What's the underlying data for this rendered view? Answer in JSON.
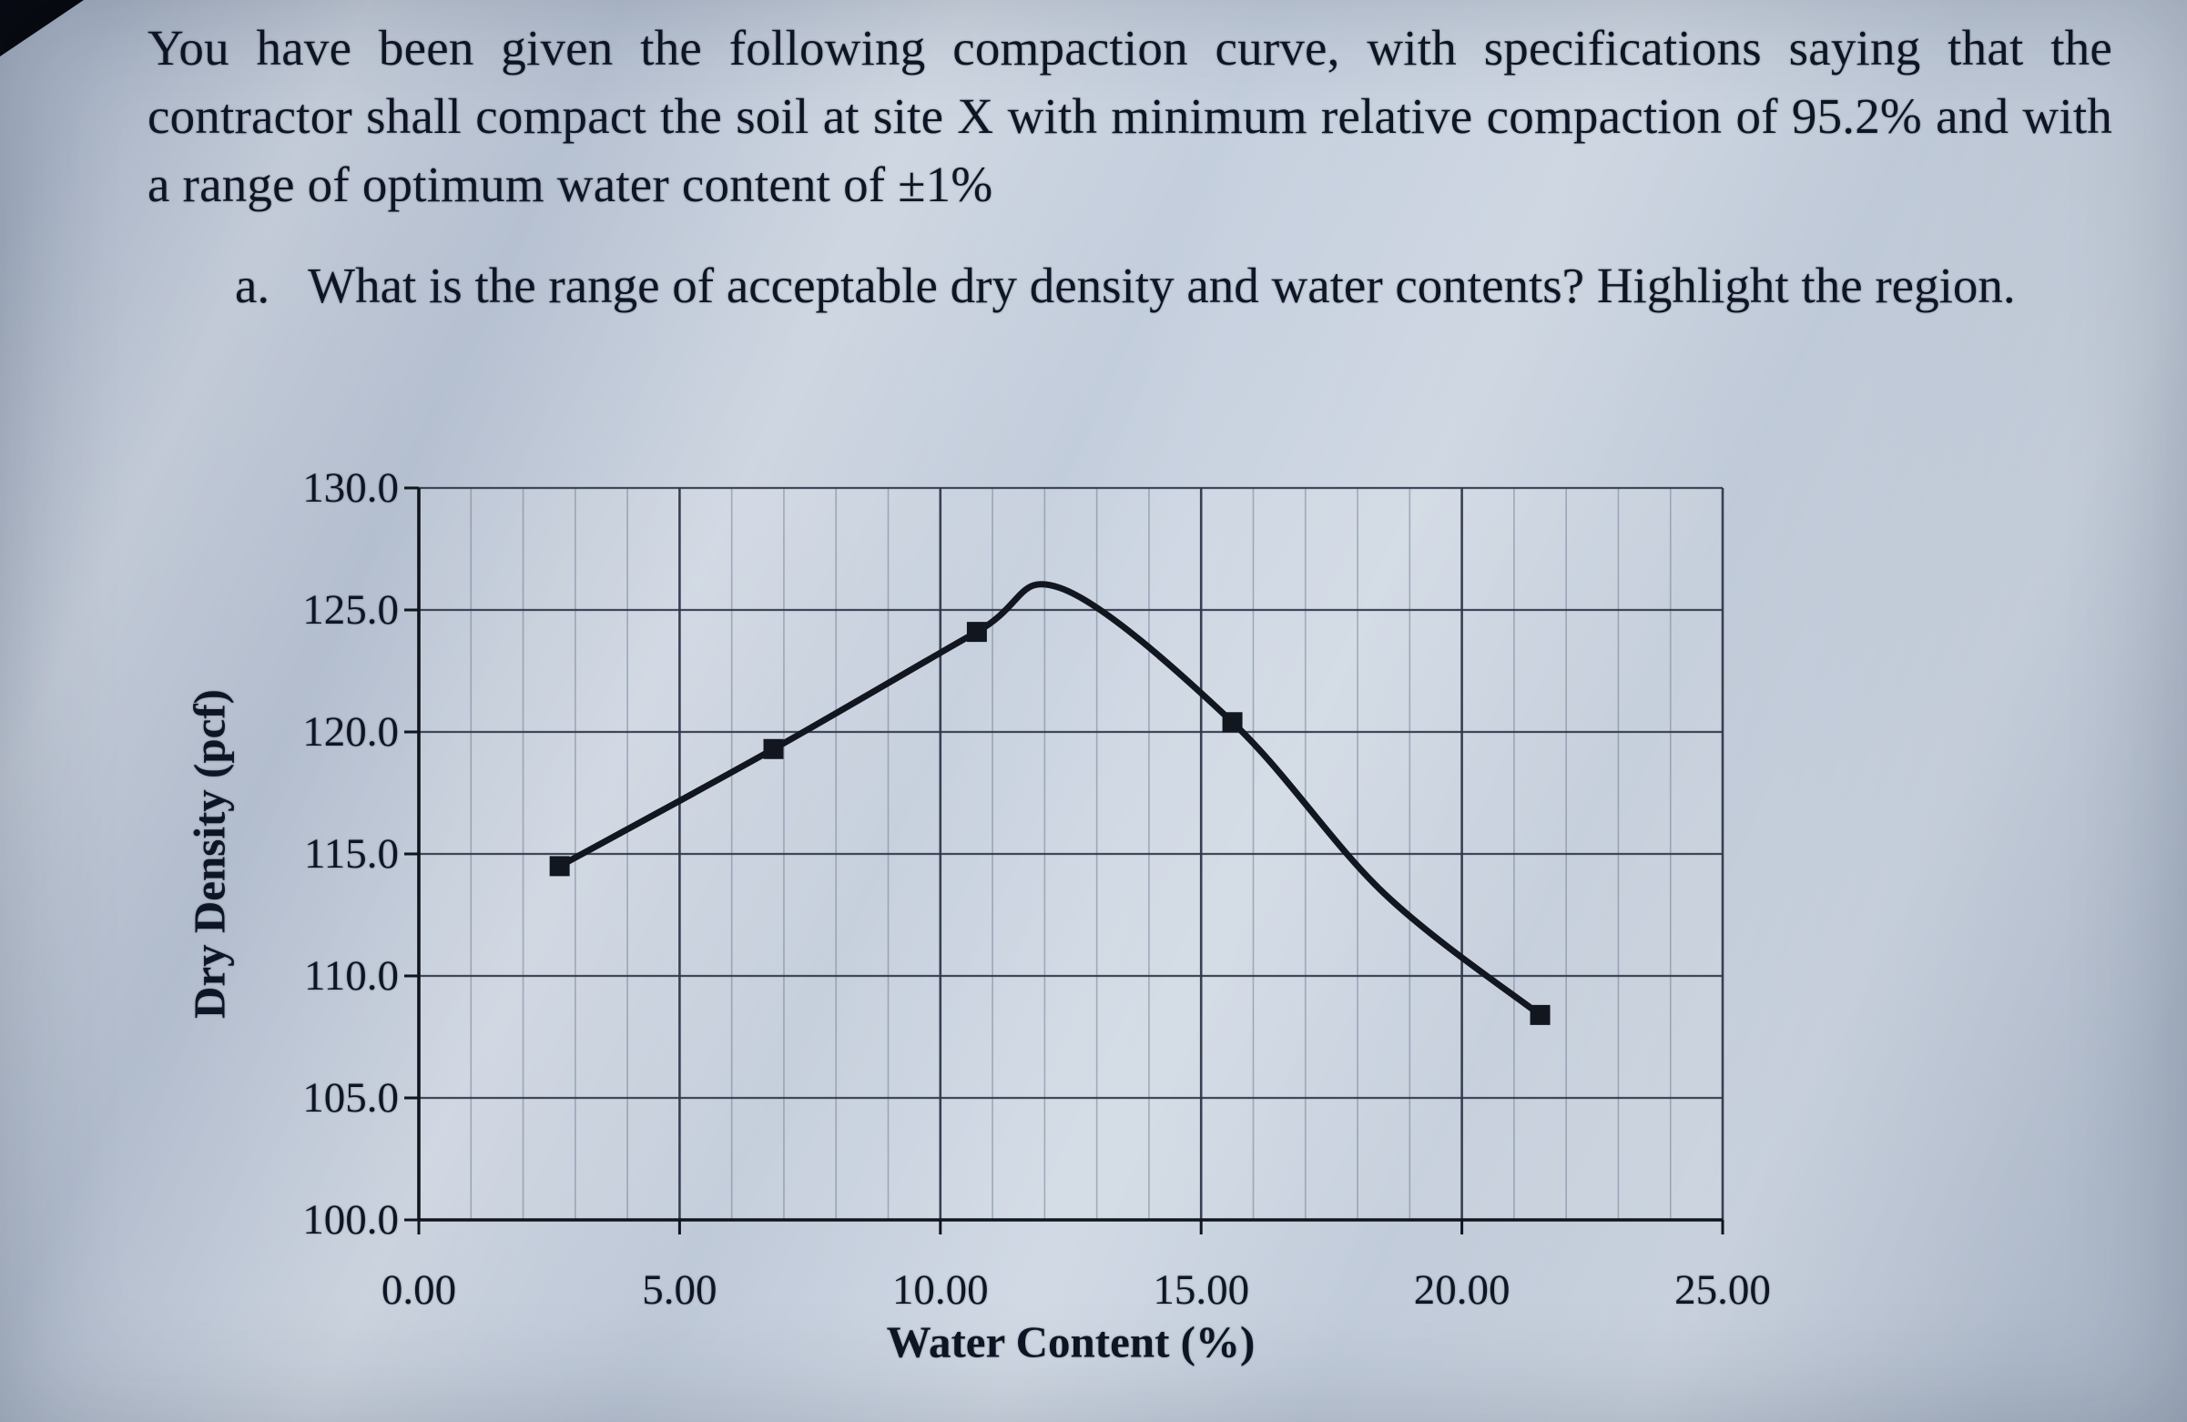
{
  "document": {
    "paragraph": "You have been given the following compaction curve, with specifications saying that the contractor shall compact the soil at site X with minimum relative compaction of 95.2% and with a range of optimum water content of ±1%",
    "question_label": "a.",
    "question_text": "What is the range of acceptable dry density and water contents? Highlight the region."
  },
  "chart_data": {
    "type": "line",
    "title": "",
    "xlabel": "Water Content (%)",
    "ylabel": "Dry Density (pcf)",
    "xlim": [
      0,
      25
    ],
    "ylim": [
      100,
      130
    ],
    "x_ticks": [
      "0.00",
      "5.00",
      "10.00",
      "15.00",
      "20.00",
      "25.00"
    ],
    "y_ticks": [
      "100.0",
      "105.0",
      "110.0",
      "115.0",
      "120.0",
      "125.0",
      "130.0"
    ],
    "grid": {
      "minor_x_step": 1,
      "major_x_step": 5,
      "major_y_step": 5,
      "minor_gridlines": "vertical-only"
    },
    "legend": "none",
    "series": [
      {
        "name": "Compaction curve",
        "marker": "square",
        "color": "#12161f",
        "curve_points": [
          [
            2.7,
            114.5
          ],
          [
            6.8,
            119.3
          ],
          [
            10.7,
            124.1
          ],
          [
            12.3,
            125.9
          ],
          [
            15.6,
            120.4
          ],
          [
            18.5,
            113.4
          ],
          [
            21.5,
            108.4
          ]
        ],
        "marker_points": [
          [
            2.7,
            114.5
          ],
          [
            6.8,
            119.3
          ],
          [
            10.7,
            124.1
          ],
          [
            15.6,
            120.4
          ],
          [
            21.5,
            108.4
          ]
        ]
      }
    ]
  },
  "colors": {
    "page_tint": "#b7c2d2",
    "text": "#0e1524",
    "curve": "#12161f",
    "major_grid": "#30374a",
    "minor_grid": "#69738a"
  }
}
